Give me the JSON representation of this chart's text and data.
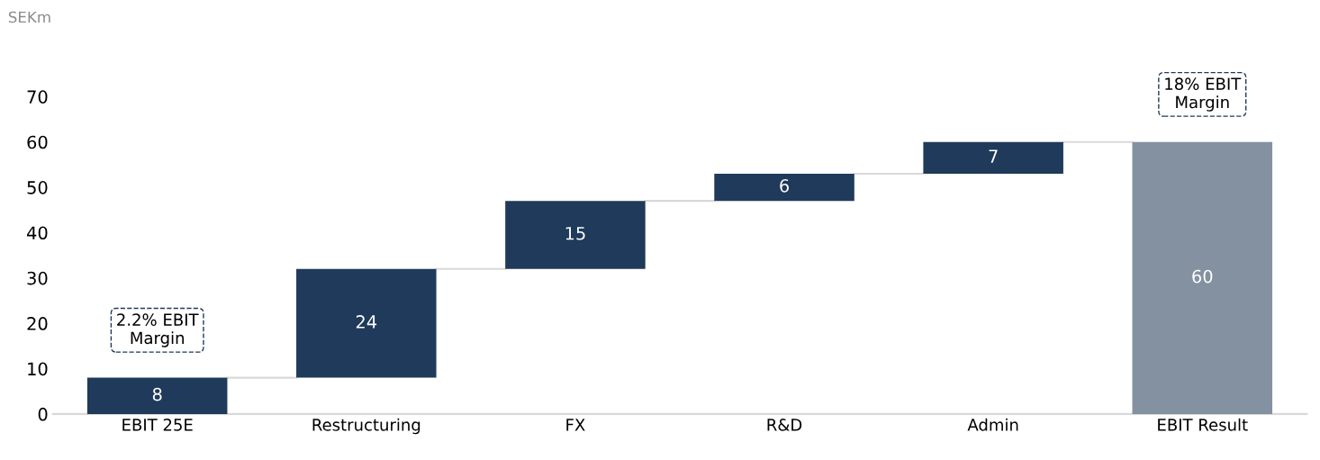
{
  "chart_data": {
    "type": "bar",
    "ylabel": "SEKm",
    "categories": [
      "EBIT 25E",
      "Restructuring",
      "FX",
      "R&D",
      "Admin",
      "EBIT Result"
    ],
    "values": [
      8,
      24,
      15,
      6,
      7,
      60
    ],
    "base": [
      0,
      8,
      32,
      47,
      53,
      0
    ],
    "colors": [
      "#1f3a5a",
      "#1f3a5a",
      "#1f3a5a",
      "#1f3a5a",
      "#1f3a5a",
      "#8391a0"
    ],
    "data_labels": true,
    "ylim": [
      0,
      70
    ],
    "yticks": [
      0,
      10,
      20,
      30,
      40,
      50,
      60,
      70
    ],
    "grid": false,
    "legend": false,
    "annotations": [
      {
        "text": "2.2% EBIT\nMargin",
        "x": "EBIT 25E",
        "y": 8
      },
      {
        "text": "18% EBIT\nMargin",
        "x": "EBIT Result",
        "y": 60
      }
    ]
  }
}
